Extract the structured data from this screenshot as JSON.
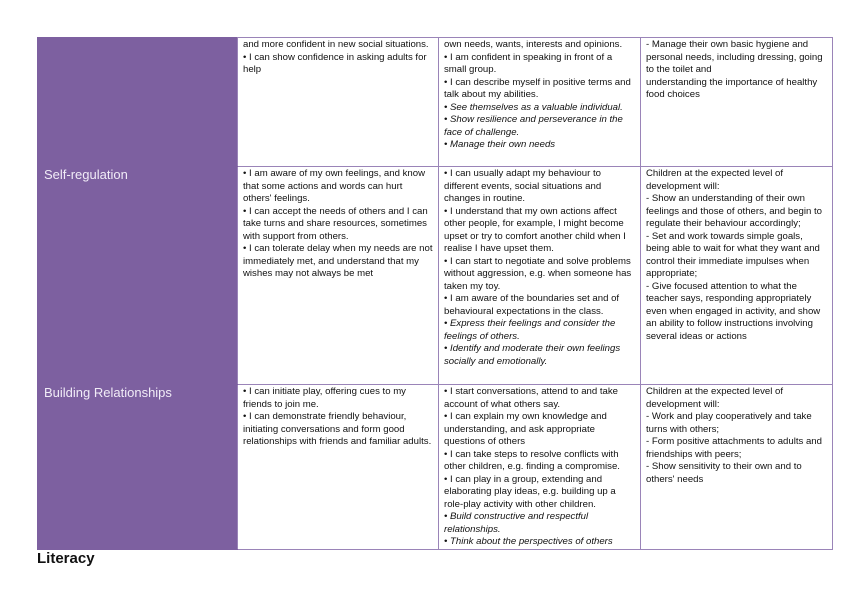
{
  "rows": [
    {
      "area": "",
      "col1": [
        "and more confident in new social situations.",
        "• I can show confidence in asking adults for help"
      ],
      "col2": [
        "own needs, wants, interests and opinions.",
        "• I am confident in speaking in front of a small group.",
        "• I can describe myself in positive terms and talk about my abilities."
      ],
      "col2_italic": [
        "• See themselves as a valuable individual.",
        "• Show resilience and perseverance in the face of challenge.",
        "• Manage their own needs"
      ],
      "col3": [
        "- Manage their own basic hygiene and personal needs, including dressing, going to the toilet and",
        "understanding the importance of healthy food choices"
      ]
    },
    {
      "area": "Self-regulation",
      "col1": [
        "• I am aware of my own feelings, and know that some actions and words can hurt others' feelings.",
        "• I can accept the needs of others and I can take turns and share resources, sometimes with support from others.",
        "• I can tolerate delay when my needs are not immediately met, and understand that my wishes may not always be met"
      ],
      "col2": [
        "• I can usually adapt my behaviour to different events, social situations and changes in routine.",
        "• I understand that my own actions affect other people, for example, I might become upset or try to comfort another child when I realise I have upset them.",
        "• I can start to negotiate and solve problems without aggression, e.g. when someone has taken my toy.",
        "• I am aware of the boundaries set and of behavioural expectations in the class."
      ],
      "col2_italic": [
        "• Express their feelings and consider the feelings of others.",
        "• Identify and moderate their own feelings socially and emotionally."
      ],
      "col3": [
        "Children at the expected level of development will:",
        "- Show an understanding of their own feelings and those of others, and begin to regulate their behaviour accordingly;",
        "- Set and work towards simple goals, being able to wait for what they want and control their immediate impulses when appropriate;",
        "- Give focused attention to what the teacher says, responding appropriately even when engaged in activity, and show an ability to follow instructions involving several ideas or actions"
      ]
    },
    {
      "area": "Building Relationships",
      "col1": [
        "• I can initiate play, offering cues to my friends to join me.",
        "• I can demonstrate friendly behaviour, initiating conversations and form good relationships with friends and familiar adults."
      ],
      "col2": [
        "• I start conversations, attend to and take account of what others say.",
        "• I can explain my own knowledge and understanding, and ask appropriate questions of others",
        "• I can take steps to resolve conflicts with other children, e.g. finding a compromise.",
        "• I can play in a group, extending and elaborating play ideas, e.g. building up a role-play activity with other children."
      ],
      "col2_italic": [
        "• Build constructive and respectful relationships.",
        "• Think about the perspectives of others"
      ],
      "col3": [
        "Children at the expected level of development will:",
        "- Work and play cooperatively and take turns with others;",
        "- Form positive attachments to adults and friendships with peers;",
        "- Show sensitivity to their own and to others' needs"
      ]
    }
  ],
  "next_heading": "Literacy",
  "colors": {
    "header_fill": "#7d60a0",
    "border": "#9a84b8"
  }
}
